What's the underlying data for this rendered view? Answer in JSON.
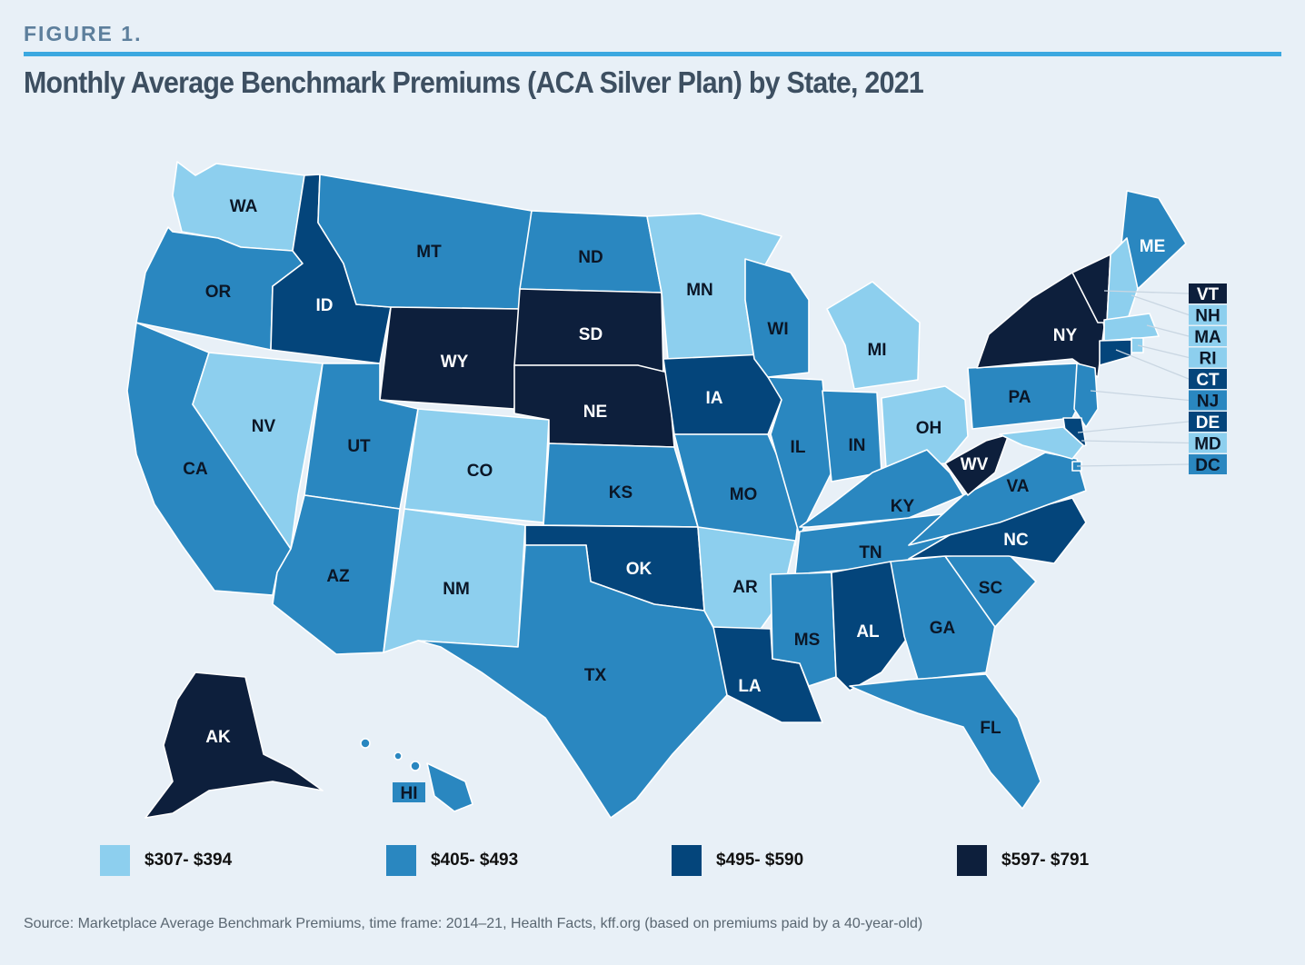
{
  "figure_label": "FIGURE 1.",
  "title": "Monthly Average Benchmark Premiums (ACA Silver Plan) by State, 2021",
  "source": "Source: Marketplace Average Benchmark Premiums, time frame: 2014–21, Health Facts, kff.org (based on premiums paid by a 40-year-old)",
  "colors": {
    "c1": "#8dcfee",
    "c2": "#2a87c0",
    "c3": "#04457b",
    "c4": "#0d1f3c",
    "background": "#e8f0f7",
    "rule": "#3ba8e0"
  },
  "legend": [
    {
      "label": "$307- $394",
      "bin": "c1"
    },
    {
      "label": "$405- $493",
      "bin": "c2"
    },
    {
      "label": "$495- $590",
      "bin": "c3"
    },
    {
      "label": "$597- $791",
      "bin": "c4"
    }
  ],
  "chart_data": {
    "type": "choropleth",
    "region": "United States",
    "bins": [
      "$307- $394",
      "$405- $493",
      "$495- $590",
      "$597- $791"
    ],
    "states": [
      {
        "abbr": "WA",
        "bin": 0
      },
      {
        "abbr": "OR",
        "bin": 1
      },
      {
        "abbr": "CA",
        "bin": 1
      },
      {
        "abbr": "ID",
        "bin": 2
      },
      {
        "abbr": "NV",
        "bin": 0
      },
      {
        "abbr": "MT",
        "bin": 1
      },
      {
        "abbr": "WY",
        "bin": 3
      },
      {
        "abbr": "UT",
        "bin": 1
      },
      {
        "abbr": "AZ",
        "bin": 1
      },
      {
        "abbr": "CO",
        "bin": 0
      },
      {
        "abbr": "NM",
        "bin": 0
      },
      {
        "abbr": "ND",
        "bin": 1
      },
      {
        "abbr": "SD",
        "bin": 3
      },
      {
        "abbr": "NE",
        "bin": 3
      },
      {
        "abbr": "KS",
        "bin": 1
      },
      {
        "abbr": "OK",
        "bin": 2
      },
      {
        "abbr": "TX",
        "bin": 1
      },
      {
        "abbr": "MN",
        "bin": 0
      },
      {
        "abbr": "IA",
        "bin": 2
      },
      {
        "abbr": "MO",
        "bin": 1
      },
      {
        "abbr": "AR",
        "bin": 0
      },
      {
        "abbr": "LA",
        "bin": 2
      },
      {
        "abbr": "WI",
        "bin": 1
      },
      {
        "abbr": "IL",
        "bin": 1
      },
      {
        "abbr": "MI",
        "bin": 0
      },
      {
        "abbr": "IN",
        "bin": 1
      },
      {
        "abbr": "OH",
        "bin": 0
      },
      {
        "abbr": "KY",
        "bin": 1
      },
      {
        "abbr": "TN",
        "bin": 1
      },
      {
        "abbr": "MS",
        "bin": 1
      },
      {
        "abbr": "AL",
        "bin": 2
      },
      {
        "abbr": "GA",
        "bin": 1
      },
      {
        "abbr": "FL",
        "bin": 1
      },
      {
        "abbr": "SC",
        "bin": 1
      },
      {
        "abbr": "NC",
        "bin": 2
      },
      {
        "abbr": "VA",
        "bin": 1
      },
      {
        "abbr": "WV",
        "bin": 3
      },
      {
        "abbr": "PA",
        "bin": 1
      },
      {
        "abbr": "NY",
        "bin": 3
      },
      {
        "abbr": "ME",
        "bin": 1
      },
      {
        "abbr": "AK",
        "bin": 3
      },
      {
        "abbr": "HI",
        "bin": 1
      },
      {
        "abbr": "VT",
        "bin": 3
      },
      {
        "abbr": "NH",
        "bin": 0
      },
      {
        "abbr": "MA",
        "bin": 0
      },
      {
        "abbr": "RI",
        "bin": 0
      },
      {
        "abbr": "CT",
        "bin": 2
      },
      {
        "abbr": "NJ",
        "bin": 1
      },
      {
        "abbr": "DE",
        "bin": 2
      },
      {
        "abbr": "MD",
        "bin": 0
      },
      {
        "abbr": "DC",
        "bin": 1
      }
    ]
  }
}
